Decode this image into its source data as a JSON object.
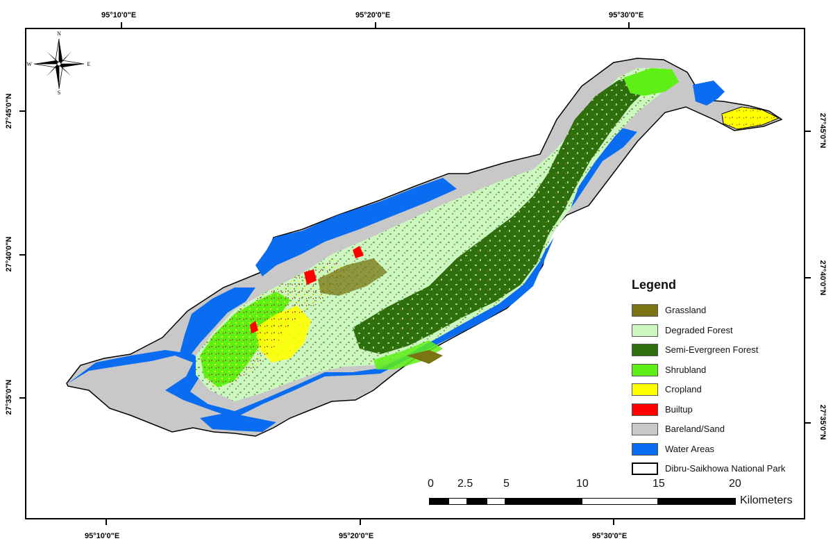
{
  "graticule": {
    "top_lon": [
      "95°10'0\"E",
      "95°20'0\"E",
      "95°30'0\"E"
    ],
    "bottom_lon": [
      "95°10'0\"E",
      "95°20'0\"E",
      "95°30'0\"E"
    ],
    "left_lat": [
      "27°45'0\"N",
      "27°40'0\"N",
      "27°35'0\"N"
    ],
    "right_lat": [
      "27°45'0\"N",
      "27°40'0\"N",
      "27°35'0\"N"
    ]
  },
  "compass": {
    "n": "N",
    "s": "S",
    "e": "E",
    "w": "W"
  },
  "legend": {
    "title": "Legend",
    "items": [
      {
        "label": "Grassland",
        "color": "#7a7414"
      },
      {
        "label": "Degraded Forest",
        "color": "#ccf7c0"
      },
      {
        "label": "Semi-Evergreen Forest",
        "color": "#2e6e0c"
      },
      {
        "label": "Shrubland",
        "color": "#5eef17"
      },
      {
        "label": "Cropland",
        "color": "#ffff00"
      },
      {
        "label": "Builtup",
        "color": "#ff0000"
      },
      {
        "label": "Bareland/Sand",
        "color": "#c8c8c8"
      },
      {
        "label": "Water Areas",
        "color": "#0a6cf0"
      },
      {
        "label": "Dibru-Saikhowa National Park",
        "color": "#ffffff"
      }
    ]
  },
  "scale_bar": {
    "labels": [
      "0",
      "2.5",
      "5",
      "10",
      "15",
      "20"
    ],
    "units": "Kilometers"
  }
}
